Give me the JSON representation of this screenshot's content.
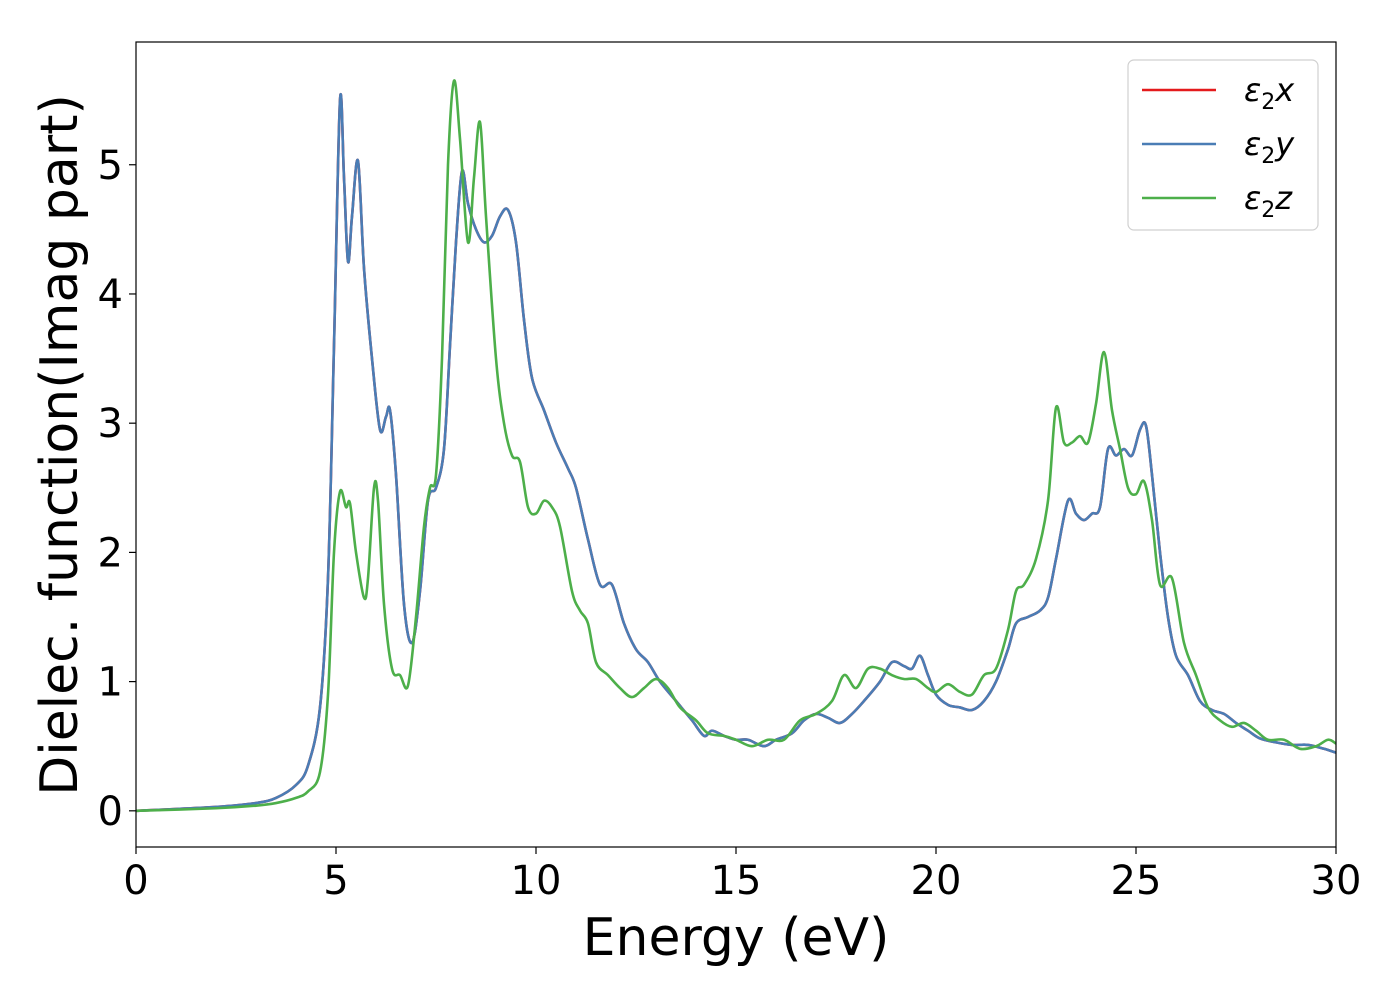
{
  "chart_data": {
    "type": "line",
    "title": "",
    "xlabel": "Energy (eV)",
    "ylabel": "Dielec. function(Imag part)",
    "xlim": [
      0,
      30
    ],
    "ylim": [
      -0.28,
      5.95
    ],
    "xticks": [
      0,
      5,
      10,
      15,
      20,
      25,
      30
    ],
    "yticks": [
      0,
      1,
      2,
      3,
      4,
      5
    ],
    "grid": false,
    "legend_position": "top-right",
    "series": [
      {
        "name": "ε₂x",
        "legend_base": "ε",
        "legend_sub": "2",
        "legend_var": "x",
        "color": "#e41a1c",
        "x": [
          0,
          2,
          3,
          3.5,
          4,
          4.3,
          4.6,
          4.8,
          4.95,
          5.1,
          5.2,
          5.3,
          5.4,
          5.55,
          5.7,
          5.9,
          6.1,
          6.25,
          6.35,
          6.5,
          6.7,
          6.9,
          7.1,
          7.3,
          7.5,
          7.7,
          7.85,
          8.0,
          8.15,
          8.3,
          8.5,
          8.7,
          8.9,
          9.1,
          9.3,
          9.5,
          9.7,
          9.9,
          10.2,
          10.5,
          10.8,
          11.0,
          11.3,
          11.6,
          11.9,
          12.2,
          12.5,
          12.8,
          13.1,
          13.5,
          13.9,
          14.2,
          14.4,
          14.7,
          15.0,
          15.3,
          15.7,
          16.0,
          16.4,
          16.7,
          17.0,
          17.3,
          17.6,
          17.9,
          18.2,
          18.6,
          18.9,
          19.2,
          19.4,
          19.6,
          19.8,
          20.0,
          20.3,
          20.6,
          20.9,
          21.2,
          21.5,
          21.8,
          22.0,
          22.3,
          22.6,
          22.8,
          23.0,
          23.3,
          23.5,
          23.7,
          23.9,
          24.1,
          24.3,
          24.5,
          24.7,
          24.9,
          25.1,
          25.25,
          25.4,
          25.6,
          25.8,
          26.0,
          26.3,
          26.6,
          26.9,
          27.2,
          27.5,
          27.8,
          28.1,
          28.5,
          28.9,
          29.3,
          29.7,
          30
        ],
        "y": [
          0.0,
          0.03,
          0.06,
          0.1,
          0.2,
          0.35,
          0.8,
          1.8,
          3.6,
          5.5,
          4.9,
          4.25,
          4.6,
          5.03,
          4.2,
          3.5,
          2.95,
          3.05,
          3.1,
          2.6,
          1.6,
          1.3,
          1.7,
          2.4,
          2.5,
          2.8,
          3.6,
          4.4,
          4.95,
          4.7,
          4.5,
          4.4,
          4.45,
          4.6,
          4.65,
          4.4,
          3.8,
          3.35,
          3.1,
          2.85,
          2.65,
          2.5,
          2.1,
          1.75,
          1.75,
          1.45,
          1.25,
          1.15,
          1.0,
          0.85,
          0.7,
          0.58,
          0.62,
          0.58,
          0.55,
          0.55,
          0.5,
          0.55,
          0.6,
          0.7,
          0.75,
          0.72,
          0.68,
          0.75,
          0.85,
          1.0,
          1.15,
          1.12,
          1.1,
          1.2,
          1.05,
          0.9,
          0.82,
          0.8,
          0.78,
          0.85,
          1.0,
          1.25,
          1.45,
          1.5,
          1.55,
          1.65,
          1.95,
          2.4,
          2.3,
          2.25,
          2.3,
          2.35,
          2.8,
          2.75,
          2.8,
          2.75,
          2.95,
          2.98,
          2.6,
          2.0,
          1.5,
          1.2,
          1.05,
          0.85,
          0.78,
          0.75,
          0.68,
          0.62,
          0.56,
          0.53,
          0.51,
          0.51,
          0.48,
          0.45
        ]
      },
      {
        "name": "ε₂y",
        "legend_base": "ε",
        "legend_sub": "2",
        "legend_var": "y",
        "color": "#4a7db5",
        "x": [
          0,
          2,
          3,
          3.5,
          4,
          4.3,
          4.6,
          4.8,
          4.95,
          5.1,
          5.2,
          5.3,
          5.4,
          5.55,
          5.7,
          5.9,
          6.1,
          6.25,
          6.35,
          6.5,
          6.7,
          6.9,
          7.1,
          7.3,
          7.5,
          7.7,
          7.85,
          8.0,
          8.15,
          8.3,
          8.5,
          8.7,
          8.9,
          9.1,
          9.3,
          9.5,
          9.7,
          9.9,
          10.2,
          10.5,
          10.8,
          11.0,
          11.3,
          11.6,
          11.9,
          12.2,
          12.5,
          12.8,
          13.1,
          13.5,
          13.9,
          14.2,
          14.4,
          14.7,
          15.0,
          15.3,
          15.7,
          16.0,
          16.4,
          16.7,
          17.0,
          17.3,
          17.6,
          17.9,
          18.2,
          18.6,
          18.9,
          19.2,
          19.4,
          19.6,
          19.8,
          20.0,
          20.3,
          20.6,
          20.9,
          21.2,
          21.5,
          21.8,
          22.0,
          22.3,
          22.6,
          22.8,
          23.0,
          23.3,
          23.5,
          23.7,
          23.9,
          24.1,
          24.3,
          24.5,
          24.7,
          24.9,
          25.1,
          25.25,
          25.4,
          25.6,
          25.8,
          26.0,
          26.3,
          26.6,
          26.9,
          27.2,
          27.5,
          27.8,
          28.1,
          28.5,
          28.9,
          29.3,
          29.7,
          30
        ],
        "y": [
          0.0,
          0.03,
          0.06,
          0.1,
          0.2,
          0.35,
          0.8,
          1.8,
          3.6,
          5.5,
          4.9,
          4.25,
          4.6,
          5.03,
          4.2,
          3.5,
          2.95,
          3.05,
          3.1,
          2.6,
          1.6,
          1.3,
          1.7,
          2.4,
          2.5,
          2.8,
          3.6,
          4.4,
          4.95,
          4.7,
          4.5,
          4.4,
          4.45,
          4.6,
          4.65,
          4.4,
          3.8,
          3.35,
          3.1,
          2.85,
          2.65,
          2.5,
          2.1,
          1.75,
          1.75,
          1.45,
          1.25,
          1.15,
          1.0,
          0.85,
          0.7,
          0.58,
          0.62,
          0.58,
          0.55,
          0.55,
          0.5,
          0.55,
          0.6,
          0.7,
          0.75,
          0.72,
          0.68,
          0.75,
          0.85,
          1.0,
          1.15,
          1.12,
          1.1,
          1.2,
          1.05,
          0.9,
          0.82,
          0.8,
          0.78,
          0.85,
          1.0,
          1.25,
          1.45,
          1.5,
          1.55,
          1.65,
          1.95,
          2.4,
          2.3,
          2.25,
          2.3,
          2.35,
          2.8,
          2.75,
          2.8,
          2.75,
          2.95,
          2.98,
          2.6,
          2.0,
          1.5,
          1.2,
          1.05,
          0.85,
          0.78,
          0.75,
          0.68,
          0.62,
          0.56,
          0.53,
          0.51,
          0.51,
          0.48,
          0.45
        ]
      },
      {
        "name": "ε₂z",
        "legend_base": "ε",
        "legend_sub": "2",
        "legend_var": "z",
        "color": "#4daf4a",
        "x": [
          0,
          2,
          3,
          3.5,
          4,
          4.3,
          4.6,
          4.8,
          4.95,
          5.1,
          5.25,
          5.35,
          5.5,
          5.7,
          5.8,
          5.95,
          6.05,
          6.2,
          6.4,
          6.6,
          6.8,
          7.0,
          7.2,
          7.35,
          7.5,
          7.65,
          7.8,
          7.95,
          8.1,
          8.3,
          8.45,
          8.6,
          8.75,
          9.0,
          9.2,
          9.4,
          9.6,
          9.8,
          10.0,
          10.2,
          10.4,
          10.6,
          10.9,
          11.1,
          11.3,
          11.5,
          11.8,
          12.1,
          12.4,
          12.7,
          13.0,
          13.3,
          13.6,
          14.0,
          14.3,
          14.7,
          15.0,
          15.4,
          15.8,
          16.2,
          16.6,
          17.0,
          17.4,
          17.7,
          18.0,
          18.3,
          18.6,
          18.9,
          19.2,
          19.5,
          19.8,
          20.0,
          20.3,
          20.6,
          20.9,
          21.2,
          21.5,
          21.8,
          22.0,
          22.2,
          22.5,
          22.8,
          23.0,
          23.2,
          23.4,
          23.6,
          23.8,
          24.0,
          24.2,
          24.4,
          24.6,
          24.8,
          25.0,
          25.2,
          25.4,
          25.6,
          25.9,
          26.2,
          26.5,
          26.8,
          27.1,
          27.4,
          27.7,
          28.0,
          28.3,
          28.7,
          29.1,
          29.5,
          29.8,
          30
        ],
        "y": [
          0.0,
          0.02,
          0.04,
          0.06,
          0.1,
          0.15,
          0.3,
          0.9,
          2.0,
          2.47,
          2.35,
          2.38,
          2.0,
          1.65,
          1.8,
          2.5,
          2.4,
          1.6,
          1.1,
          1.05,
          0.97,
          1.5,
          2.2,
          2.5,
          2.6,
          3.5,
          5.0,
          5.65,
          5.2,
          4.4,
          4.9,
          5.33,
          4.6,
          3.5,
          3.0,
          2.75,
          2.7,
          2.35,
          2.3,
          2.4,
          2.35,
          2.2,
          1.7,
          1.55,
          1.45,
          1.15,
          1.05,
          0.95,
          0.88,
          0.95,
          1.02,
          0.95,
          0.8,
          0.7,
          0.6,
          0.58,
          0.55,
          0.5,
          0.55,
          0.55,
          0.7,
          0.75,
          0.85,
          1.05,
          0.95,
          1.1,
          1.1,
          1.05,
          1.02,
          1.02,
          0.95,
          0.92,
          0.98,
          0.92,
          0.9,
          1.05,
          1.1,
          1.4,
          1.7,
          1.75,
          1.95,
          2.4,
          3.12,
          2.85,
          2.85,
          2.9,
          2.85,
          3.15,
          3.55,
          3.1,
          2.8,
          2.5,
          2.45,
          2.55,
          2.25,
          1.75,
          1.8,
          1.3,
          1.05,
          0.8,
          0.7,
          0.65,
          0.68,
          0.62,
          0.55,
          0.55,
          0.48,
          0.5,
          0.55,
          0.52
        ]
      }
    ]
  }
}
